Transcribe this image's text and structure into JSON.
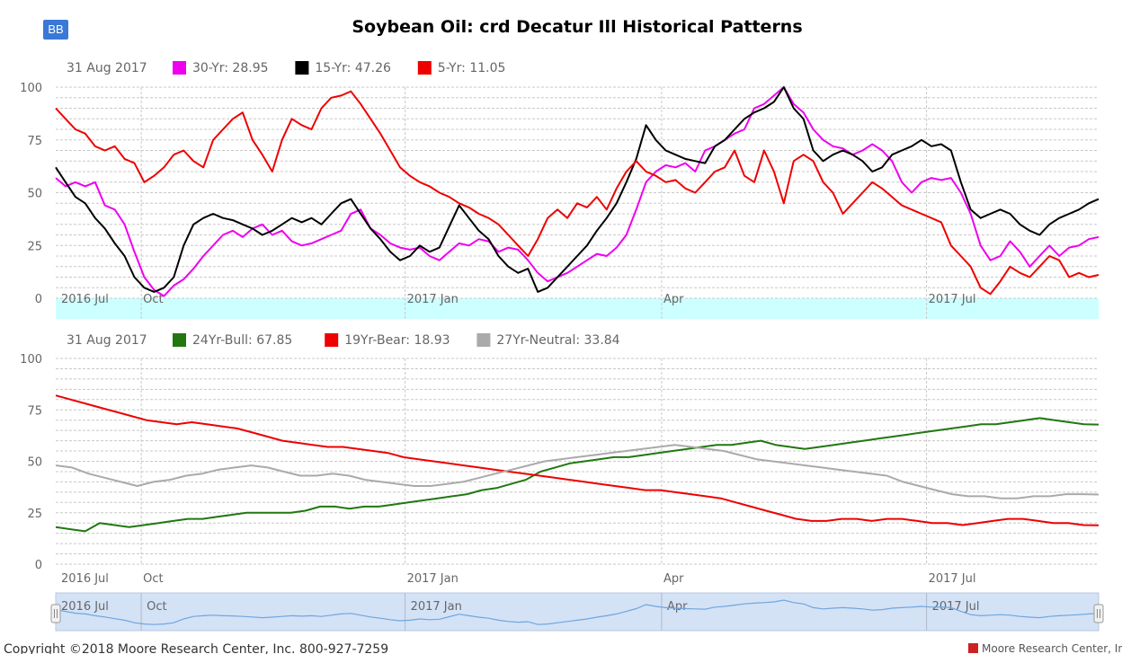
{
  "button_label": "BB",
  "title": "Soybean Oil: crd Decatur Ill Historical Patterns",
  "copyright": "Copyright ©2018 Moore Research Center, Inc. 800-927-7259",
  "brand": "Moore Research Center, Inc.",
  "colors": {
    "magenta": "#ee00ee",
    "black": "#000000",
    "red": "#ee0000",
    "green": "#227711",
    "gray": "#aaaaaa",
    "band": "#ccffff",
    "navigator_fill": "#d4e2f6",
    "navigator_line": "#6fa6df"
  },
  "x_labels": [
    "2016 Jul",
    "Oct",
    "2017 Jan",
    "Apr",
    "2017 Jul"
  ],
  "navigator_labels": [
    "2016 Jul",
    "Oct",
    "2017 Jan",
    "Apr",
    "2017 Jul"
  ],
  "chart_data": [
    {
      "type": "line",
      "name": "seasonal-patterns",
      "legend_date": "31 Aug 2017",
      "x": "trading days, Jul 2016 - Aug 2017",
      "ylim": [
        0,
        100
      ],
      "yticks": [
        0,
        25,
        50,
        75,
        100
      ],
      "series": [
        {
          "name": "30-Yr",
          "legend_label": "30-Yr: 28.95",
          "last": 28.95,
          "color": "#ee00ee",
          "values": [
            57,
            53,
            55,
            53,
            55,
            44,
            42,
            35,
            22,
            10,
            4,
            1,
            6,
            9,
            14,
            20,
            25,
            30,
            32,
            29,
            33,
            35,
            30,
            32,
            27,
            25,
            26,
            28,
            30,
            32,
            40,
            42,
            33,
            30,
            26,
            24,
            23,
            24,
            20,
            18,
            22,
            26,
            25,
            28,
            27,
            22,
            24,
            23,
            18,
            12,
            8,
            10,
            12,
            15,
            18,
            21,
            20,
            24,
            30,
            42,
            55,
            60,
            63,
            62,
            64,
            60,
            70,
            72,
            75,
            78,
            80,
            90,
            92,
            96,
            100,
            92,
            88,
            80,
            75,
            72,
            71,
            68,
            70,
            73,
            70,
            65,
            55,
            50,
            55,
            57,
            56,
            57,
            50,
            40,
            25,
            18,
            20,
            27,
            22,
            15,
            20,
            25,
            20,
            24,
            25,
            28,
            29
          ]
        },
        {
          "name": "15-Yr",
          "legend_label": "15-Yr: 47.26",
          "last": 47.26,
          "color": "#000000",
          "values": [
            62,
            55,
            48,
            45,
            38,
            33,
            26,
            20,
            10,
            5,
            3,
            5,
            10,
            25,
            35,
            38,
            40,
            38,
            37,
            35,
            33,
            30,
            32,
            35,
            38,
            36,
            38,
            35,
            40,
            45,
            47,
            40,
            33,
            28,
            22,
            18,
            20,
            25,
            22,
            24,
            34,
            44,
            38,
            32,
            28,
            20,
            15,
            12,
            14,
            3,
            5,
            10,
            15,
            20,
            25,
            32,
            38,
            45,
            55,
            66,
            82,
            75,
            70,
            68,
            66,
            65,
            64,
            72,
            75,
            80,
            85,
            88,
            90,
            93,
            100,
            90,
            85,
            70,
            65,
            68,
            70,
            68,
            65,
            60,
            62,
            68,
            70,
            72,
            75,
            72,
            73,
            70,
            55,
            42,
            38,
            40,
            42,
            40,
            35,
            32,
            30,
            35,
            38,
            40,
            42,
            45,
            47
          ]
        },
        {
          "name": "5-Yr",
          "legend_label": "5-Yr: 11.05",
          "last": 11.05,
          "color": "#ee0000",
          "values": [
            90,
            85,
            80,
            78,
            72,
            70,
            72,
            66,
            64,
            55,
            58,
            62,
            68,
            70,
            65,
            62,
            75,
            80,
            85,
            88,
            75,
            68,
            60,
            75,
            85,
            82,
            80,
            90,
            95,
            96,
            98,
            92,
            85,
            78,
            70,
            62,
            58,
            55,
            53,
            50,
            48,
            45,
            43,
            40,
            38,
            35,
            30,
            25,
            20,
            28,
            38,
            42,
            38,
            45,
            43,
            48,
            42,
            52,
            60,
            65,
            60,
            58,
            55,
            56,
            52,
            50,
            55,
            60,
            62,
            70,
            58,
            55,
            70,
            60,
            45,
            65,
            68,
            65,
            55,
            50,
            40,
            45,
            50,
            55,
            52,
            48,
            44,
            42,
            40,
            38,
            36,
            25,
            20,
            15,
            5,
            2,
            8,
            15,
            12,
            10,
            15,
            20,
            18,
            10,
            12,
            10,
            11.05
          ]
        }
      ]
    },
    {
      "type": "line",
      "name": "bull-bear-neutral",
      "legend_date": "31 Aug 2017",
      "x": "trading days, Jul 2016 - Aug 2017",
      "ylim": [
        0,
        100
      ],
      "yticks": [
        0,
        25,
        50,
        75,
        100
      ],
      "series": [
        {
          "name": "24Yr-Bull",
          "legend_label": "24Yr-Bull: 67.85",
          "last": 67.85,
          "color": "#227711",
          "values": [
            18,
            17,
            16,
            20,
            19,
            18,
            19,
            20,
            21,
            22,
            22,
            23,
            24,
            25,
            25,
            25,
            25,
            26,
            28,
            28,
            27,
            28,
            28,
            29,
            30,
            31,
            32,
            33,
            34,
            36,
            37,
            39,
            41,
            45,
            47,
            49,
            50,
            51,
            52,
            52,
            53,
            54,
            55,
            56,
            57,
            58,
            58,
            59,
            60,
            58,
            57,
            56,
            57,
            58,
            59,
            60,
            61,
            62,
            63,
            64,
            65,
            66,
            67,
            68,
            68,
            69,
            70,
            71,
            70,
            69,
            68,
            67.85
          ]
        },
        {
          "name": "19Yr-Bear",
          "legend_label": "19Yr-Bear: 18.93",
          "last": 18.93,
          "color": "#ee0000",
          "values": [
            82,
            80,
            78,
            76,
            74,
            72,
            70,
            69,
            68,
            69,
            68,
            67,
            66,
            64,
            62,
            60,
            59,
            58,
            57,
            57,
            56,
            55,
            54,
            52,
            51,
            50,
            49,
            48,
            47,
            46,
            45,
            44,
            43,
            42,
            41,
            40,
            39,
            38,
            37,
            36,
            36,
            35,
            34,
            33,
            32,
            30,
            28,
            26,
            24,
            22,
            21,
            21,
            22,
            22,
            21,
            22,
            22,
            21,
            20,
            20,
            19,
            20,
            21,
            22,
            22,
            21,
            20,
            20,
            19,
            18.93
          ]
        },
        {
          "name": "27Yr-Neutral",
          "legend_label": "27Yr-Neutral: 33.84",
          "last": 33.84,
          "color": "#aaaaaa",
          "values": [
            48,
            47,
            44,
            42,
            40,
            38,
            40,
            41,
            43,
            44,
            46,
            47,
            48,
            47,
            45,
            43,
            43,
            44,
            43,
            41,
            40,
            39,
            38,
            38,
            39,
            40,
            42,
            44,
            46,
            48,
            50,
            51,
            52,
            53,
            54,
            55,
            56,
            57,
            58,
            57,
            56,
            55,
            53,
            51,
            50,
            49,
            48,
            47,
            46,
            45,
            44,
            43,
            40,
            38,
            36,
            34,
            33,
            33,
            32,
            32,
            33,
            33,
            34,
            34,
            33.84
          ]
        }
      ]
    }
  ]
}
